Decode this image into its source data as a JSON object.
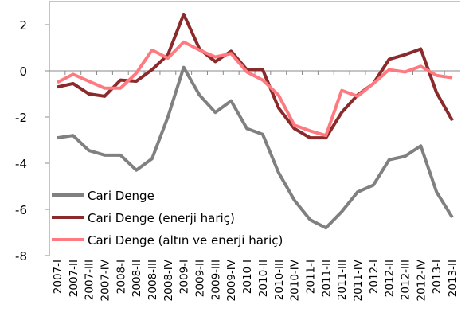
{
  "chart_data": {
    "type": "line",
    "categories": [
      "2007-I",
      "2007-II",
      "2007-III",
      "2007-IV",
      "2008-I",
      "2008-II",
      "2008-III",
      "2008-IV",
      "2009-I",
      "2009-II",
      "2009-III",
      "2009-IV",
      "2010-I",
      "2010-II",
      "2010-III",
      "2010-IV",
      "2011-I",
      "2011-II",
      "2011-III",
      "2011-IV",
      "2012-I",
      "2012-II",
      "2012-III",
      "2012-IV",
      "2013-I",
      "2013-II"
    ],
    "series": [
      {
        "name": "Cari Denge",
        "color": "#808080",
        "values": [
          -2.9,
          -2.8,
          -3.45,
          -3.65,
          -3.65,
          -4.3,
          -3.8,
          -2.0,
          0.15,
          -1.05,
          -1.8,
          -1.3,
          -2.5,
          -2.75,
          -4.4,
          -5.6,
          -6.45,
          -6.8,
          -6.1,
          -5.25,
          -4.95,
          -3.85,
          -3.7,
          -3.25,
          -5.25,
          -6.35
        ]
      },
      {
        "name": "Cari Denge (enerji hariç)",
        "color": "#8b2a2a",
        "values": [
          -0.7,
          -0.55,
          -1.0,
          -1.1,
          -0.4,
          -0.45,
          0.05,
          0.7,
          2.45,
          0.95,
          0.4,
          0.85,
          0.05,
          0.05,
          -1.6,
          -2.5,
          -2.9,
          -2.9,
          -1.8,
          -1.05,
          -0.55,
          0.5,
          0.7,
          0.95,
          -0.95,
          -2.15
        ]
      },
      {
        "name": "Cari Denge (altın ve enerji hariç)",
        "color": "#ff7a80",
        "values": [
          -0.5,
          -0.15,
          -0.45,
          -0.75,
          -0.75,
          -0.1,
          0.9,
          0.55,
          1.25,
          0.9,
          0.6,
          0.75,
          -0.05,
          -0.4,
          -1.05,
          -2.35,
          -2.6,
          -2.8,
          -0.85,
          -1.1,
          -0.55,
          0.05,
          -0.05,
          0.2,
          -0.2,
          -0.3
        ]
      }
    ],
    "ylim": [
      -8,
      3
    ],
    "yticks": [
      -8,
      -6,
      -4,
      -2,
      0,
      2
    ],
    "legend": "lower-left"
  }
}
